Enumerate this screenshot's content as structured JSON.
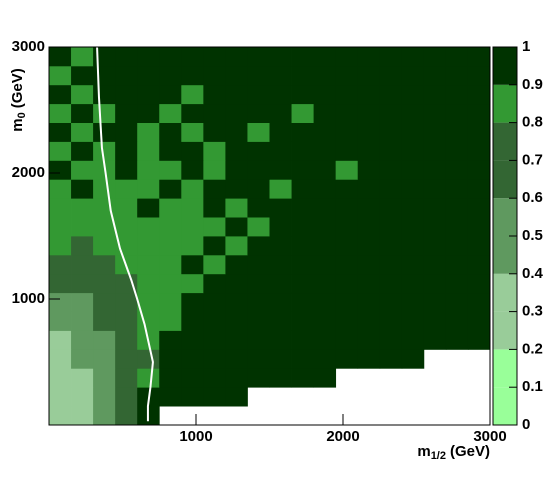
{
  "chart_data": {
    "type": "heatmap",
    "xlabel": {
      "base": "m",
      "sub": "1/2",
      "unit": "(GeV)"
    },
    "ylabel": {
      "base": "m",
      "sub": "0",
      "unit": "(GeV)"
    },
    "xlim": [
      0,
      3000
    ],
    "ylim": [
      0,
      3000
    ],
    "xticks": [
      1000,
      2000,
      3000
    ],
    "yticks": [
      1000,
      2000,
      3000
    ],
    "xbins": [
      0,
      150,
      300,
      450,
      600,
      750,
      900,
      1050,
      1200,
      1350,
      1500,
      1650,
      1800,
      1950,
      2100,
      2250,
      2400,
      2550,
      2700,
      2850,
      3000
    ],
    "ybins": [
      0,
      150,
      300,
      450,
      600,
      750,
      900,
      1050,
      1200,
      1350,
      1500,
      1650,
      1800,
      1950,
      2100,
      2250,
      2400,
      2550,
      2700,
      2850,
      3000
    ],
    "z": [
      [
        0.35,
        0.3,
        0.55,
        0.65,
        0.95,
        null,
        null,
        null,
        null,
        null,
        null,
        null,
        null,
        null,
        null,
        null,
        null,
        null,
        null,
        null
      ],
      [
        0.3,
        0.25,
        0.45,
        0.65,
        0.95,
        0.95,
        0.95,
        0.95,
        0.95,
        null,
        null,
        null,
        null,
        null,
        null,
        null,
        null,
        null,
        null,
        null
      ],
      [
        0.3,
        0.35,
        0.5,
        0.65,
        0.85,
        0.95,
        0.95,
        0.95,
        0.95,
        0.95,
        0.95,
        0.95,
        0.95,
        null,
        null,
        null,
        null,
        null,
        null,
        null
      ],
      [
        0.35,
        0.4,
        0.5,
        0.65,
        0.75,
        0.95,
        0.95,
        0.95,
        0.95,
        0.95,
        0.95,
        0.95,
        0.95,
        0.95,
        0.95,
        0.95,
        0.95,
        null,
        null,
        null
      ],
      [
        0.35,
        0.45,
        0.55,
        0.65,
        0.85,
        0.95,
        0.95,
        0.95,
        0.95,
        0.95,
        0.95,
        0.95,
        0.95,
        0.95,
        0.95,
        0.95,
        0.95,
        0.95,
        0.95,
        0.95
      ],
      [
        0.45,
        0.5,
        0.6,
        0.65,
        0.85,
        0.85,
        0.95,
        0.95,
        0.95,
        0.95,
        0.95,
        0.95,
        0.95,
        0.95,
        0.95,
        0.95,
        0.95,
        0.95,
        0.95,
        0.95
      ],
      [
        0.55,
        0.55,
        0.65,
        0.65,
        0.85,
        0.85,
        0.95,
        0.95,
        0.95,
        0.95,
        0.95,
        0.95,
        0.95,
        0.95,
        0.95,
        0.95,
        0.95,
        0.95,
        0.95,
        0.95
      ],
      [
        0.65,
        0.6,
        0.65,
        0.75,
        0.85,
        0.85,
        0.85,
        0.95,
        0.95,
        0.95,
        0.95,
        0.95,
        0.95,
        0.95,
        0.95,
        0.95,
        0.95,
        0.95,
        0.95,
        0.95
      ],
      [
        0.65,
        0.75,
        0.65,
        0.85,
        0.85,
        0.85,
        0.95,
        0.85,
        0.95,
        0.95,
        0.95,
        0.95,
        0.95,
        0.95,
        0.95,
        0.95,
        0.95,
        0.95,
        0.95,
        0.95
      ],
      [
        0.85,
        0.75,
        0.85,
        0.85,
        0.85,
        0.85,
        0.85,
        0.95,
        0.85,
        0.95,
        0.95,
        0.95,
        0.95,
        0.95,
        0.95,
        0.95,
        0.95,
        0.95,
        0.95,
        0.95
      ],
      [
        0.85,
        0.85,
        0.85,
        0.85,
        0.85,
        0.85,
        0.85,
        0.85,
        0.95,
        0.85,
        0.95,
        0.95,
        0.95,
        0.95,
        0.95,
        0.95,
        0.95,
        0.95,
        0.95,
        0.95
      ],
      [
        0.85,
        0.85,
        0.85,
        0.85,
        0.95,
        0.85,
        0.85,
        0.95,
        0.85,
        0.95,
        0.95,
        0.95,
        0.95,
        0.95,
        0.95,
        0.95,
        0.95,
        0.95,
        0.95,
        0.95
      ],
      [
        0.85,
        0.95,
        0.85,
        0.85,
        0.85,
        0.95,
        0.85,
        0.95,
        0.95,
        0.95,
        0.85,
        0.95,
        0.95,
        0.95,
        0.95,
        0.95,
        0.95,
        0.95,
        0.95,
        0.95
      ],
      [
        0.95,
        0.85,
        0.85,
        0.95,
        0.85,
        0.85,
        0.95,
        0.85,
        0.95,
        0.95,
        0.95,
        0.95,
        0.95,
        0.85,
        0.95,
        0.95,
        0.95,
        0.95,
        0.95,
        0.95
      ],
      [
        0.85,
        0.95,
        0.85,
        0.95,
        0.85,
        0.95,
        0.95,
        0.85,
        0.95,
        0.95,
        0.95,
        0.95,
        0.95,
        0.95,
        0.95,
        0.95,
        0.95,
        0.95,
        0.95,
        0.95
      ],
      [
        0.95,
        0.85,
        0.95,
        0.95,
        0.85,
        0.95,
        0.85,
        0.95,
        0.95,
        0.85,
        0.95,
        0.95,
        0.95,
        0.95,
        0.95,
        0.95,
        0.95,
        0.95,
        0.95,
        0.95
      ],
      [
        0.85,
        0.95,
        0.85,
        0.95,
        0.95,
        0.85,
        0.95,
        0.95,
        0.95,
        0.95,
        0.95,
        0.85,
        0.95,
        0.95,
        0.95,
        0.95,
        0.95,
        0.95,
        0.95,
        0.95
      ],
      [
        0.95,
        0.85,
        0.95,
        0.95,
        0.95,
        0.95,
        0.85,
        0.95,
        0.95,
        0.95,
        0.95,
        0.95,
        0.95,
        0.95,
        0.95,
        0.95,
        0.95,
        0.95,
        0.95,
        0.95
      ],
      [
        0.85,
        0.95,
        0.95,
        0.95,
        0.95,
        0.95,
        0.95,
        0.95,
        0.95,
        0.95,
        0.95,
        0.95,
        0.95,
        0.95,
        0.95,
        0.95,
        0.95,
        0.95,
        0.95,
        0.95
      ],
      [
        0.95,
        0.85,
        0.95,
        0.95,
        0.95,
        0.95,
        0.95,
        0.95,
        0.95,
        0.95,
        0.95,
        0.95,
        0.95,
        0.95,
        0.95,
        0.95,
        0.95,
        0.95,
        0.95,
        0.95
      ]
    ],
    "zlim": [
      0,
      1
    ],
    "zticks": [
      0,
      0.1,
      0.2,
      0.3,
      0.4,
      0.5,
      0.6,
      0.7,
      0.8,
      0.9,
      1
    ],
    "palette": [
      "#99ff99",
      "#99ff99",
      "#99cc99",
      "#99cc99",
      "#5f995f",
      "#5f995f",
      "#336633",
      "#336633",
      "#339933",
      "#003300"
    ],
    "contour": {
      "color": "#ffffff",
      "x": [
        327,
        340,
        360,
        385,
        420,
        483,
        560,
        600,
        650,
        707,
        690,
        673,
        673
      ],
      "y": [
        3000,
        2600,
        2200,
        2000,
        1700,
        1400,
        1150,
        1000,
        800,
        500,
        300,
        150,
        30
      ]
    }
  }
}
